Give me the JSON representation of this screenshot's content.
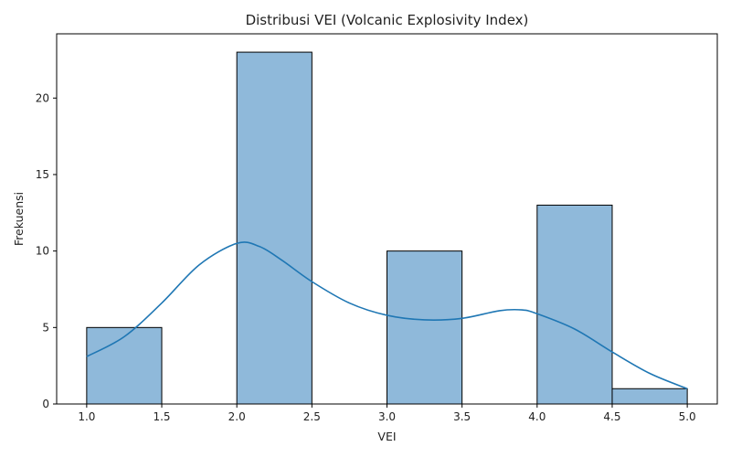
{
  "chart_data": {
    "type": "histogram",
    "title": "Distribusi VEI (Volcanic Explosivity Index)",
    "xlabel": "VEI",
    "ylabel": "Frekuensi",
    "xlim": [
      0.8,
      5.2
    ],
    "ylim": [
      0,
      24.2
    ],
    "x_ticks": [
      "1.0",
      "1.5",
      "2.0",
      "2.5",
      "3.0",
      "3.5",
      "4.0",
      "4.5",
      "5.0"
    ],
    "y_ticks": [
      "0",
      "5",
      "10",
      "15",
      "20"
    ],
    "bins": [
      {
        "x0": 1.0,
        "x1": 1.5,
        "count": 5
      },
      {
        "x0": 1.5,
        "x1": 2.0,
        "count": 0
      },
      {
        "x0": 2.0,
        "x1": 2.5,
        "count": 23
      },
      {
        "x0": 2.5,
        "x1": 3.0,
        "count": 0
      },
      {
        "x0": 3.0,
        "x1": 3.5,
        "count": 10
      },
      {
        "x0": 3.5,
        "x1": 4.0,
        "count": 0
      },
      {
        "x0": 4.0,
        "x1": 4.5,
        "count": 13
      },
      {
        "x0": 4.5,
        "x1": 5.0,
        "count": 1
      }
    ],
    "kde": {
      "x": [
        1.0,
        1.25,
        1.5,
        1.75,
        2.0,
        2.15,
        2.3,
        2.5,
        2.75,
        3.0,
        3.25,
        3.5,
        3.75,
        3.9,
        4.0,
        4.25,
        4.5,
        4.75,
        5.0
      ],
      "y": [
        3.1,
        4.4,
        6.6,
        9.1,
        10.5,
        10.3,
        9.4,
        8.0,
        6.6,
        5.8,
        5.5,
        5.6,
        6.1,
        6.15,
        5.9,
        4.9,
        3.4,
        2.0,
        1.0
      ]
    },
    "colors": {
      "bar_fill": "#8fb9da",
      "bar_edge": "#000000",
      "kde_line": "#1f77b4"
    },
    "grid": false,
    "legend": "none"
  }
}
